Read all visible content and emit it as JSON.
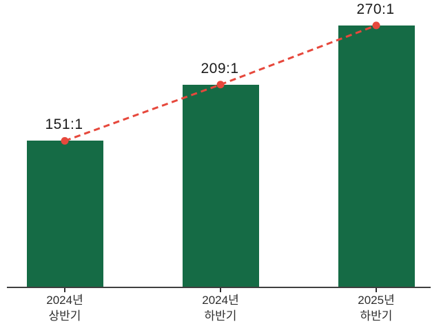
{
  "chart_data": {
    "type": "bar",
    "title": "",
    "xlabel": "",
    "ylabel": "",
    "categories": [
      {
        "line1": "2024년",
        "line2": "상반기"
      },
      {
        "line1": "2024년",
        "line2": "하반기"
      },
      {
        "line1": "2025년",
        "line2": "하반기"
      }
    ],
    "values": [
      151,
      209,
      270
    ],
    "value_labels": [
      "151:1",
      "209:1",
      "270:1"
    ],
    "overlay_line": {
      "type": "line",
      "style": "dashed",
      "marker": "circle",
      "values": [
        151,
        209,
        270
      ]
    },
    "y_axis_visible": false,
    "grid": false,
    "legend": null,
    "ylim": [
      0,
      300
    ],
    "colors": {
      "bar": "#156b45",
      "line": "#e6483c",
      "marker": "#e6483c",
      "axis": "#3f3f3f",
      "tick": "#2d2d2d",
      "value_text": "#1a1a1a",
      "category_text": "#2d2d2d",
      "background": "#ffffff"
    }
  }
}
